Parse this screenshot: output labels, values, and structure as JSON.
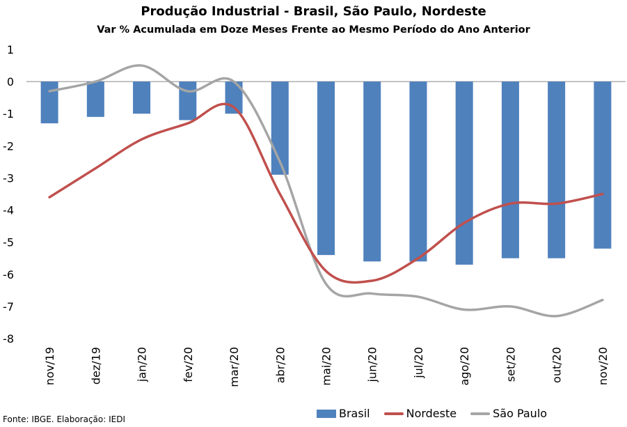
{
  "chart_data": {
    "type": "bar",
    "title": "Produção Industrial - Brasil, São Paulo, Nordeste",
    "subtitle": "Var % Acumulada em Doze Meses Frente ao Mesmo Período do Ano Anterior",
    "categories": [
      "nov/19",
      "dez/19",
      "jan/20",
      "fev/20",
      "mar/20",
      "abr/20",
      "mai/20",
      "jun/20",
      "jul/20",
      "ago/20",
      "set/20",
      "out/20",
      "nov/20"
    ],
    "series": [
      {
        "name": "Brasil",
        "type": "bar",
        "color": "#4f81bd",
        "values": [
          -1.3,
          -1.1,
          -1.0,
          -1.2,
          -1.0,
          -2.9,
          -5.4,
          -5.6,
          -5.6,
          -5.7,
          -5.5,
          -5.5,
          -5.2
        ]
      },
      {
        "name": "Nordeste",
        "type": "line",
        "color": "#c0504d",
        "values": [
          -3.6,
          -2.7,
          -1.8,
          -1.3,
          -0.8,
          -3.5,
          -5.9,
          -6.2,
          -5.5,
          -4.4,
          -3.8,
          -3.8,
          -3.5
        ]
      },
      {
        "name": "São Paulo",
        "type": "line",
        "color": "#a5a5a5",
        "values": [
          -0.3,
          0.0,
          0.5,
          -0.3,
          0.0,
          -2.5,
          -6.3,
          -6.6,
          -6.7,
          -7.1,
          -7.0,
          -7.3,
          -6.8
        ]
      }
    ],
    "ylim": [
      -8,
      1
    ],
    "yticks": [
      1,
      0,
      -1,
      -2,
      -3,
      -4,
      -5,
      -6,
      -7,
      -8
    ],
    "grid": false,
    "legend_position": "bottom-right"
  },
  "source_note": "Fonte: IBGE. Elaboração: IEDI"
}
